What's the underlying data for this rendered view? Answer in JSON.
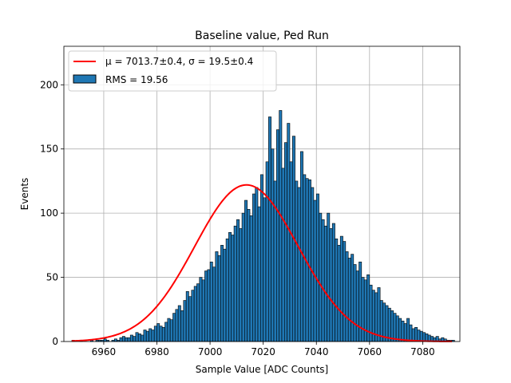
{
  "chart_data": {
    "type": "bar",
    "title": "Baseline value, Ped Run",
    "xlabel": "Sample Value [ADC Counts]",
    "ylabel": "Events",
    "xlim": [
      6945,
      7094
    ],
    "ylim": [
      0,
      230
    ],
    "x_ticks": [
      6960,
      6980,
      7000,
      7020,
      7040,
      7060,
      7080
    ],
    "y_ticks": [
      0,
      50,
      100,
      150,
      200
    ],
    "grid": true,
    "legend_position": "top-left",
    "legend": {
      "fit_label": "μ = 7013.7±0.4, σ = 19.5±0.4",
      "hist_label": "RMS = 19.56"
    },
    "colors": {
      "bars": "#1f77b4",
      "bar_edge": "#000000",
      "fit": "#ff0000",
      "grid": "#b0b0b0"
    },
    "histogram": {
      "bin_start": 6948,
      "bin_width": 1,
      "counts": [
        1,
        0,
        0,
        1,
        0,
        0,
        0,
        1,
        0,
        1,
        1,
        1,
        2,
        1,
        0,
        1,
        2,
        1,
        3,
        4,
        3,
        3,
        5,
        4,
        7,
        6,
        5,
        9,
        8,
        10,
        9,
        12,
        14,
        12,
        11,
        15,
        18,
        17,
        22,
        25,
        28,
        24,
        32,
        39,
        35,
        40,
        43,
        45,
        50,
        48,
        55,
        56,
        62,
        58,
        70,
        67,
        75,
        72,
        80,
        85,
        83,
        90,
        95,
        88,
        100,
        110,
        103,
        98,
        115,
        120,
        105,
        130,
        112,
        140,
        175,
        150,
        125,
        165,
        180,
        135,
        155,
        170,
        140,
        160,
        125,
        120,
        148,
        130,
        127,
        126,
        120,
        110,
        115,
        100,
        95,
        90,
        100,
        88,
        92,
        80,
        75,
        82,
        78,
        70,
        65,
        68,
        60,
        55,
        62,
        50,
        48,
        52,
        44,
        40,
        38,
        42,
        32,
        30,
        28,
        26,
        24,
        22,
        20,
        18,
        16,
        14,
        18,
        13,
        10,
        11,
        9,
        8,
        7,
        6,
        5,
        4,
        3,
        4,
        2,
        3,
        2,
        1,
        1,
        1
      ]
    },
    "fit": {
      "type": "gaussian",
      "mu": 7013.7,
      "sigma": 19.5,
      "amplitude": 122,
      "x_range": [
        6948,
        7091
      ]
    }
  }
}
